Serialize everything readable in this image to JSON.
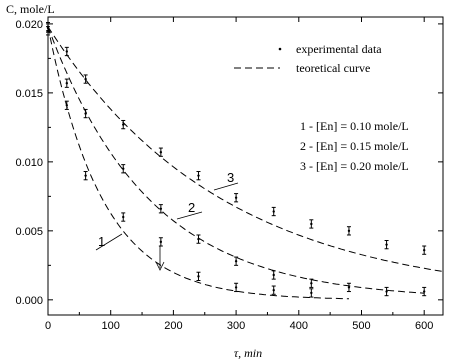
{
  "chart_data": {
    "type": "scatter",
    "title": "",
    "ylabel": "C, mole/L",
    "xlabel": "τ, min",
    "xlim": [
      0,
      630
    ],
    "ylim": [
      -0.0011,
      0.0205
    ],
    "x_ticks": [
      0,
      100,
      200,
      300,
      400,
      500,
      600
    ],
    "y_ticks": [
      0.0,
      0.005,
      0.01,
      0.015,
      0.02
    ],
    "y_tick_labels": [
      "0.000",
      "0.005",
      "0.010",
      "0.015",
      "0.020"
    ],
    "grid": false,
    "legend": {
      "position": "top-right",
      "entries": [
        {
          "marker": "error-bar",
          "label": "experimental data"
        },
        {
          "marker": "dashed-line",
          "label": "teoretical curve"
        }
      ]
    },
    "conditions": [
      "1 - [En] = 0.10 mole/L",
      "2 - [En] = 0.15 mole/L",
      "3 - [En] = 0.20 mole/L"
    ],
    "series": [
      {
        "name": "1",
        "points": [
          {
            "x": 0,
            "y": 0.0195
          },
          {
            "x": 30,
            "y": 0.0141
          },
          {
            "x": 60,
            "y": 0.009
          },
          {
            "x": 120,
            "y": 0.006
          },
          {
            "x": 180,
            "y": 0.0042
          },
          {
            "x": 240,
            "y": 0.0017
          },
          {
            "x": 300,
            "y": 0.0009
          },
          {
            "x": 360,
            "y": 0.0007
          },
          {
            "x": 420,
            "y": 0.0005
          }
        ],
        "curve": {
          "c0": 0.0198,
          "k": 0.0115,
          "x_max": 480
        }
      },
      {
        "name": "2",
        "points": [
          {
            "x": 0,
            "y": 0.0197
          },
          {
            "x": 30,
            "y": 0.0157
          },
          {
            "x": 60,
            "y": 0.0135
          },
          {
            "x": 120,
            "y": 0.0095
          },
          {
            "x": 180,
            "y": 0.0066
          },
          {
            "x": 240,
            "y": 0.0044
          },
          {
            "x": 300,
            "y": 0.0028
          },
          {
            "x": 360,
            "y": 0.0018
          },
          {
            "x": 420,
            "y": 0.0012
          },
          {
            "x": 480,
            "y": 0.0009
          },
          {
            "x": 540,
            "y": 0.0006
          },
          {
            "x": 600,
            "y": 0.0006
          }
        ],
        "curve": {
          "c0": 0.0198,
          "k": 0.0062,
          "x_max": 600
        }
      },
      {
        "name": "3",
        "points": [
          {
            "x": 0,
            "y": 0.0198
          },
          {
            "x": 30,
            "y": 0.018
          },
          {
            "x": 60,
            "y": 0.016
          },
          {
            "x": 120,
            "y": 0.0127
          },
          {
            "x": 180,
            "y": 0.0107
          },
          {
            "x": 240,
            "y": 0.009
          },
          {
            "x": 300,
            "y": 0.0074
          },
          {
            "x": 360,
            "y": 0.0064
          },
          {
            "x": 420,
            "y": 0.0055
          },
          {
            "x": 480,
            "y": 0.005
          },
          {
            "x": 540,
            "y": 0.004
          },
          {
            "x": 600,
            "y": 0.0036
          }
        ],
        "curve": {
          "c0": 0.0198,
          "k": 0.0036,
          "x_max": 630
        }
      }
    ]
  }
}
